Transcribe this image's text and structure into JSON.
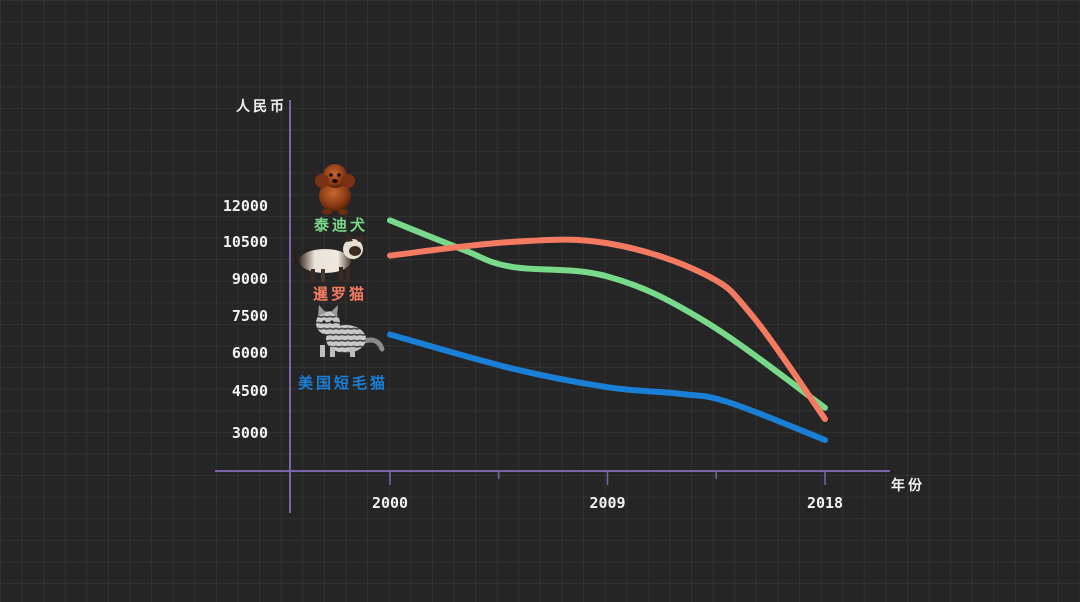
{
  "chart_data": {
    "type": "line",
    "title": "",
    "xlabel": "年份",
    "ylabel": "人民币",
    "x": [
      2000,
      2009,
      2018
    ],
    "x_ticks": [
      "2000",
      "2009",
      "2018"
    ],
    "y_ticks": [
      "3000",
      "4500",
      "6000",
      "7500",
      "9000",
      "10500",
      "12000"
    ],
    "xlim": [
      1996,
      2020
    ],
    "ylim": [
      1500,
      13000
    ],
    "grid": true,
    "series": [
      {
        "name": "泰迪犬",
        "color": "#79d98a",
        "icon": "poodle-icon",
        "points": [
          [
            2000,
            11400
          ],
          [
            2003,
            10200
          ],
          [
            2005,
            9500
          ],
          [
            2009,
            9100
          ],
          [
            2013,
            7300
          ],
          [
            2018,
            3900
          ]
        ]
      },
      {
        "name": "暹罗猫",
        "color": "#f47a62",
        "icon": "siamese-cat-icon",
        "points": [
          [
            2000,
            9950
          ],
          [
            2005,
            10500
          ],
          [
            2009,
            10450
          ],
          [
            2013,
            9200
          ],
          [
            2015,
            7500
          ],
          [
            2018,
            3500
          ]
        ]
      },
      {
        "name": "美国短毛猫",
        "color": "#1a7fd6",
        "icon": "american-shorthair-icon",
        "points": [
          [
            2000,
            6750
          ],
          [
            2005,
            5400
          ],
          [
            2009,
            4650
          ],
          [
            2012,
            4400
          ],
          [
            2014,
            4100
          ],
          [
            2018,
            2750
          ]
        ]
      }
    ]
  }
}
